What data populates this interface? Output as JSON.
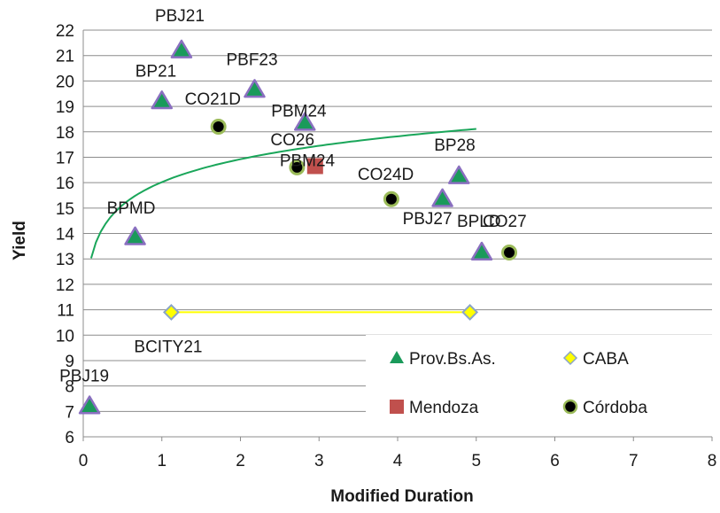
{
  "chart_data": {
    "type": "scatter",
    "title": "",
    "xlabel": "Modified Duration",
    "ylabel": "Yield",
    "xlim": [
      0,
      8
    ],
    "ylim": [
      6,
      22
    ],
    "x_ticks": [
      "0",
      "1",
      "2",
      "3",
      "4",
      "5",
      "6",
      "7",
      "8"
    ],
    "y_ticks": [
      "6",
      "7",
      "8",
      "9",
      "10",
      "11",
      "12",
      "13",
      "14",
      "15",
      "16",
      "17",
      "18",
      "19",
      "20",
      "21",
      "22"
    ],
    "grid": "horizontal",
    "legend_position": "bottom-right",
    "series": [
      {
        "name": "Prov.Bs.As.",
        "marker": "triangle",
        "color": "#1a9a5a",
        "edge_color": "#8a6fc0",
        "points": [
          {
            "label": "PBJ21",
            "x": 1.25,
            "y": 21.2
          },
          {
            "label": "BP21",
            "x": 1.0,
            "y": 19.2
          },
          {
            "label": "PBF23",
            "x": 2.18,
            "y": 19.65
          },
          {
            "label": "PBM24",
            "x": 2.82,
            "y": 18.35
          },
          {
            "label": "BPMD",
            "x": 0.66,
            "y": 13.85
          },
          {
            "label": "BP28",
            "x": 4.78,
            "y": 16.25
          },
          {
            "label": "PBJ27",
            "x": 4.57,
            "y": 15.35
          },
          {
            "label": "BPLD",
            "x": 5.07,
            "y": 13.25
          },
          {
            "label": "PBJ19",
            "x": 0.08,
            "y": 7.2
          }
        ]
      },
      {
        "name": "CABA",
        "marker": "diamond",
        "color": "#ffff00",
        "edge_color": "#8aa4c8",
        "line": true,
        "points": [
          {
            "label": "BCITY21",
            "x": 1.12,
            "y": 10.9
          },
          {
            "label": "",
            "x": 4.92,
            "y": 10.9
          }
        ]
      },
      {
        "name": "Mendoza",
        "marker": "square",
        "color": "#c0504d",
        "points": [
          {
            "label": "PBM24",
            "x": 2.95,
            "y": 16.65
          }
        ]
      },
      {
        "name": "Córdoba",
        "marker": "circle",
        "color": "#000000",
        "edge_color": "#9bbb59",
        "points": [
          {
            "label": "CO21D",
            "x": 1.72,
            "y": 18.2
          },
          {
            "label": "CO26",
            "x": 2.72,
            "y": 16.6
          },
          {
            "label": "CO24D",
            "x": 3.92,
            "y": 15.35
          },
          {
            "label": "CO27",
            "x": 5.42,
            "y": 13.25
          }
        ]
      }
    ],
    "trendline": {
      "type": "logarithmic",
      "color": "#1aa65a",
      "x_range": [
        0.1,
        5.0
      ],
      "a": 16.02,
      "b": 1.3
    }
  }
}
